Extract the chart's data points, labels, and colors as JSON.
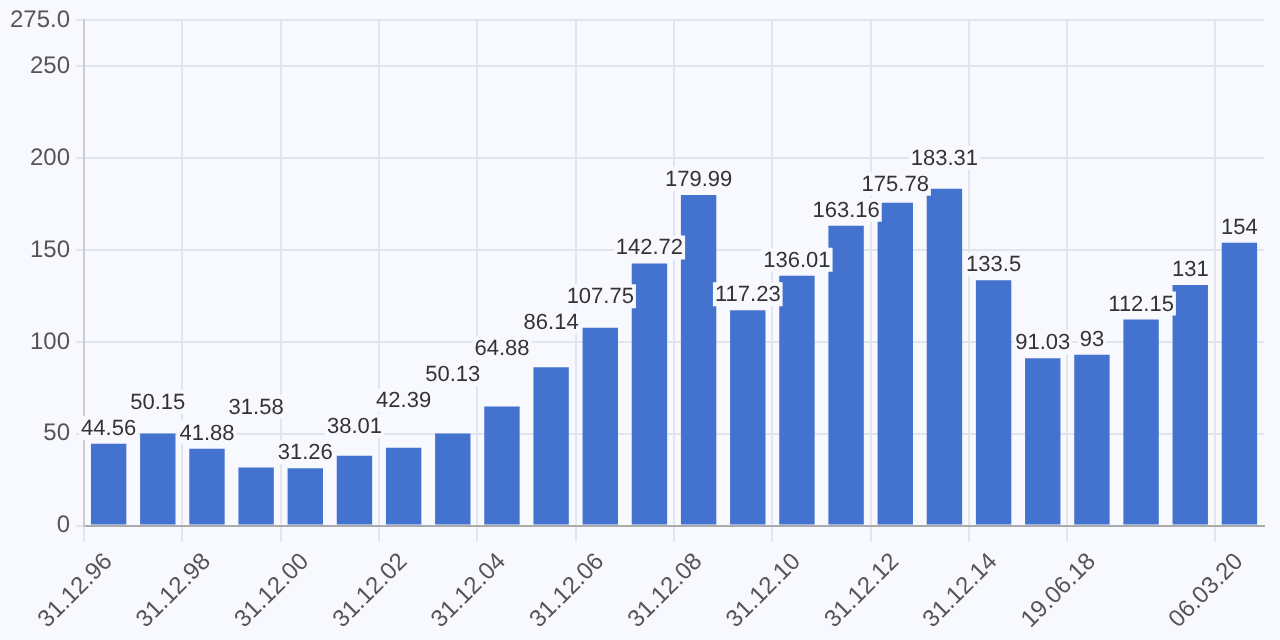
{
  "chart_data": {
    "type": "bar",
    "categories": [
      "31.12.96",
      null,
      "31.12.98",
      null,
      "31.12.00",
      null,
      "31.12.02",
      null,
      "31.12.04",
      null,
      "31.12.06",
      null,
      "31.12.08",
      null,
      "31.12.10",
      null,
      "31.12.12",
      null,
      "31.12.14",
      null,
      "19.06.18",
      null,
      null,
      "06.03.20"
    ],
    "values": [
      44.56,
      50.15,
      41.88,
      31.58,
      31.26,
      38.01,
      42.39,
      50.13,
      64.88,
      86.14,
      107.75,
      142.72,
      179.99,
      117.23,
      136.01,
      163.16,
      175.78,
      183.31,
      133.5,
      91.03,
      93,
      112.15,
      131,
      154
    ],
    "color": "#4472cf",
    "ylim": [
      0,
      275
    ],
    "yticks": [
      0,
      50,
      100,
      150,
      200,
      250,
      {
        "value": 275,
        "label": "275.0"
      }
    ],
    "grid": true,
    "data_labels": true
  }
}
